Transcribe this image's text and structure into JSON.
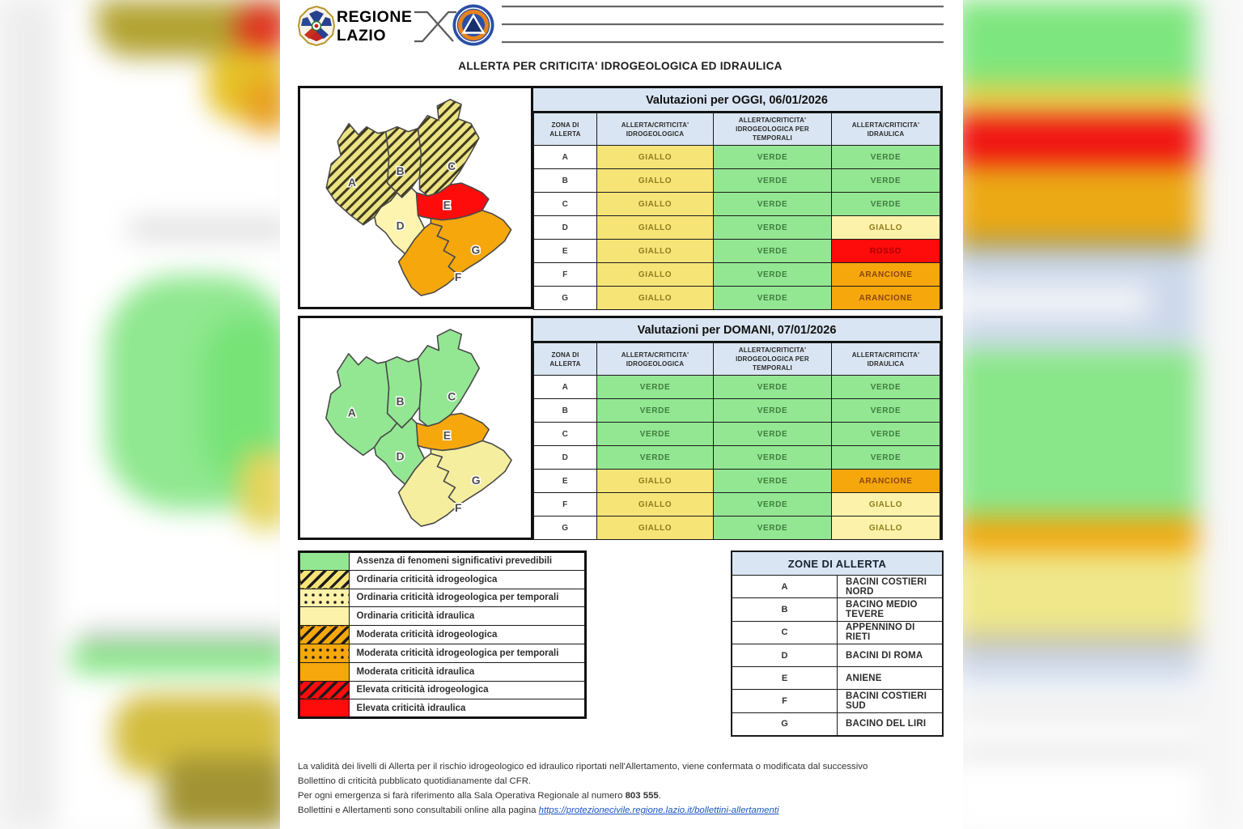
{
  "header": {
    "brand_line1": "REGIONE",
    "brand_line2": "LAZIO",
    "title": "ALLERTA PER CRITICITA' IDROGEOLOGICA ED IDRAULICA"
  },
  "columns": [
    "ZONA DI ALLERTA",
    "ALLERTA/CRITICITA' IDROGEOLOGICA",
    "ALLERTA/CRITICITA' IDROGEOLOGICA PER TEMPORALI",
    "ALLERTA/CRITICITA' IDRAULICA"
  ],
  "tables": [
    {
      "title": "Valutazioni per OGGI, 06/01/2026",
      "rows": [
        {
          "zone": "A",
          "idrogeologica": "GIALLO",
          "temporali": "VERDE",
          "idraulica": "VERDE"
        },
        {
          "zone": "B",
          "idrogeologica": "GIALLO",
          "temporali": "VERDE",
          "idraulica": "VERDE"
        },
        {
          "zone": "C",
          "idrogeologica": "GIALLO",
          "temporali": "VERDE",
          "idraulica": "VERDE"
        },
        {
          "zone": "D",
          "idrogeologica": "GIALLO",
          "temporali": "VERDE",
          "idraulica": "GIALLO"
        },
        {
          "zone": "E",
          "idrogeologica": "GIALLO",
          "temporali": "VERDE",
          "idraulica": "ROSSO"
        },
        {
          "zone": "F",
          "idrogeologica": "GIALLO",
          "temporali": "VERDE",
          "idraulica": "ARANCIONE"
        },
        {
          "zone": "G",
          "idrogeologica": "GIALLO",
          "temporali": "VERDE",
          "idraulica": "ARANCIONE"
        }
      ]
    },
    {
      "title": "Valutazioni per DOMANI, 07/01/2026",
      "rows": [
        {
          "zone": "A",
          "idrogeologica": "VERDE",
          "temporali": "VERDE",
          "idraulica": "VERDE"
        },
        {
          "zone": "B",
          "idrogeologica": "VERDE",
          "temporali": "VERDE",
          "idraulica": "VERDE"
        },
        {
          "zone": "C",
          "idrogeologica": "VERDE",
          "temporali": "VERDE",
          "idraulica": "VERDE"
        },
        {
          "zone": "D",
          "idrogeologica": "VERDE",
          "temporali": "VERDE",
          "idraulica": "VERDE"
        },
        {
          "zone": "E",
          "idrogeologica": "GIALLO",
          "temporali": "VERDE",
          "idraulica": "ARANCIONE"
        },
        {
          "zone": "F",
          "idrogeologica": "GIALLO",
          "temporali": "VERDE",
          "idraulica": "GIALLO"
        },
        {
          "zone": "G",
          "idrogeologica": "GIALLO",
          "temporali": "VERDE",
          "idraulica": "GIALLO"
        }
      ]
    }
  ],
  "maps": [
    {
      "zones": {
        "A": "hatch_yellow",
        "B": "hatch_yellow",
        "C": "hatch_yellow",
        "D": "pale_yellow",
        "E": "red",
        "F": "orange",
        "G": "orange"
      }
    },
    {
      "zones": {
        "A": "green",
        "B": "green",
        "C": "green",
        "D": "green",
        "E": "orange",
        "F": "pale_yellow2",
        "G": "pale_yellow2"
      }
    }
  ],
  "legend": [
    {
      "style": "green",
      "label": "Assenza di fenomeni significativi prevedibili"
    },
    {
      "style": "hatch-yellow",
      "label": "Ordinaria criticità idrogeologica"
    },
    {
      "style": "dots-yellow",
      "label": "Ordinaria criticità idrogeologica per temporali"
    },
    {
      "style": "pale-yellow",
      "label": "Ordinaria criticità idraulica"
    },
    {
      "style": "hatch-orange",
      "label": "Moderata criticità idrogeologica"
    },
    {
      "style": "dots-orange",
      "label": "Moderata criticità idrogeologica per temporali"
    },
    {
      "style": "orange",
      "label": "Moderata criticità idraulica"
    },
    {
      "style": "hatch-red",
      "label": "Elevata criticità idrogeologica"
    },
    {
      "style": "red",
      "label": "Elevata criticità idraulica"
    }
  ],
  "zones_table": {
    "title": "ZONE DI ALLERTA",
    "rows": [
      {
        "letter": "A",
        "name": "BACINI COSTIERI NORD"
      },
      {
        "letter": "B",
        "name": "BACINO MEDIO TEVERE"
      },
      {
        "letter": "C",
        "name": "APPENNINO DI RIETI"
      },
      {
        "letter": "D",
        "name": "BACINI DI ROMA"
      },
      {
        "letter": "E",
        "name": "ANIENE"
      },
      {
        "letter": "F",
        "name": "BACINI COSTIERI SUD"
      },
      {
        "letter": "G",
        "name": "BACINO DEL LIRI"
      }
    ]
  },
  "footer": {
    "para1_line1": "La validità dei livelli di Allerta per il rischio idrogeologico ed idraulico riportati nell'Allertamento, viene confermata o modificata dal successivo",
    "para1_line2": "Bollettino di criticità pubblicato quotidianamente dal CFR.",
    "para2_prefix": "Per ogni emergenza si farà riferimento alla Sala Operativa Regionale al numero ",
    "para2_number": "803 555",
    "para2_suffix": ".",
    "para3_prefix": "Bollettini e Allertamenti sono consultabili online alla pagina ",
    "para3_link": "https://protezionecivile.regione.lazio.it/bollettini-allertamenti"
  },
  "palette": {
    "header_blue": "#d9e5f2",
    "green": "#93e793",
    "yellow": "#f6e477",
    "yellow_pale": "#fdf2a9",
    "orange": "#f6a70c",
    "red": "#fe0b0b",
    "pale_yellow": "#fdf5af",
    "pale_yellow2": "#f5ee9e",
    "hatch_base": "#ece385",
    "hatch_line": "#3f3a1c",
    "link_blue": "#1a56c4"
  },
  "cell_colors": {
    "VERDE": {
      "bg": "#93e793",
      "fg": "#3f7d3f"
    },
    "GIALLO": {
      "bg": "#f6e477",
      "fg": "#8f7d1f"
    },
    "GIALLO_IDRAULICA": {
      "bg": "#fdf2a9",
      "fg": "#8f7d1f"
    },
    "ARANCIONE": {
      "bg": "#f6a70c",
      "fg": "#8a4512"
    },
    "ROSSO": {
      "bg": "#fe0b0b",
      "fg": "#a80000"
    }
  }
}
